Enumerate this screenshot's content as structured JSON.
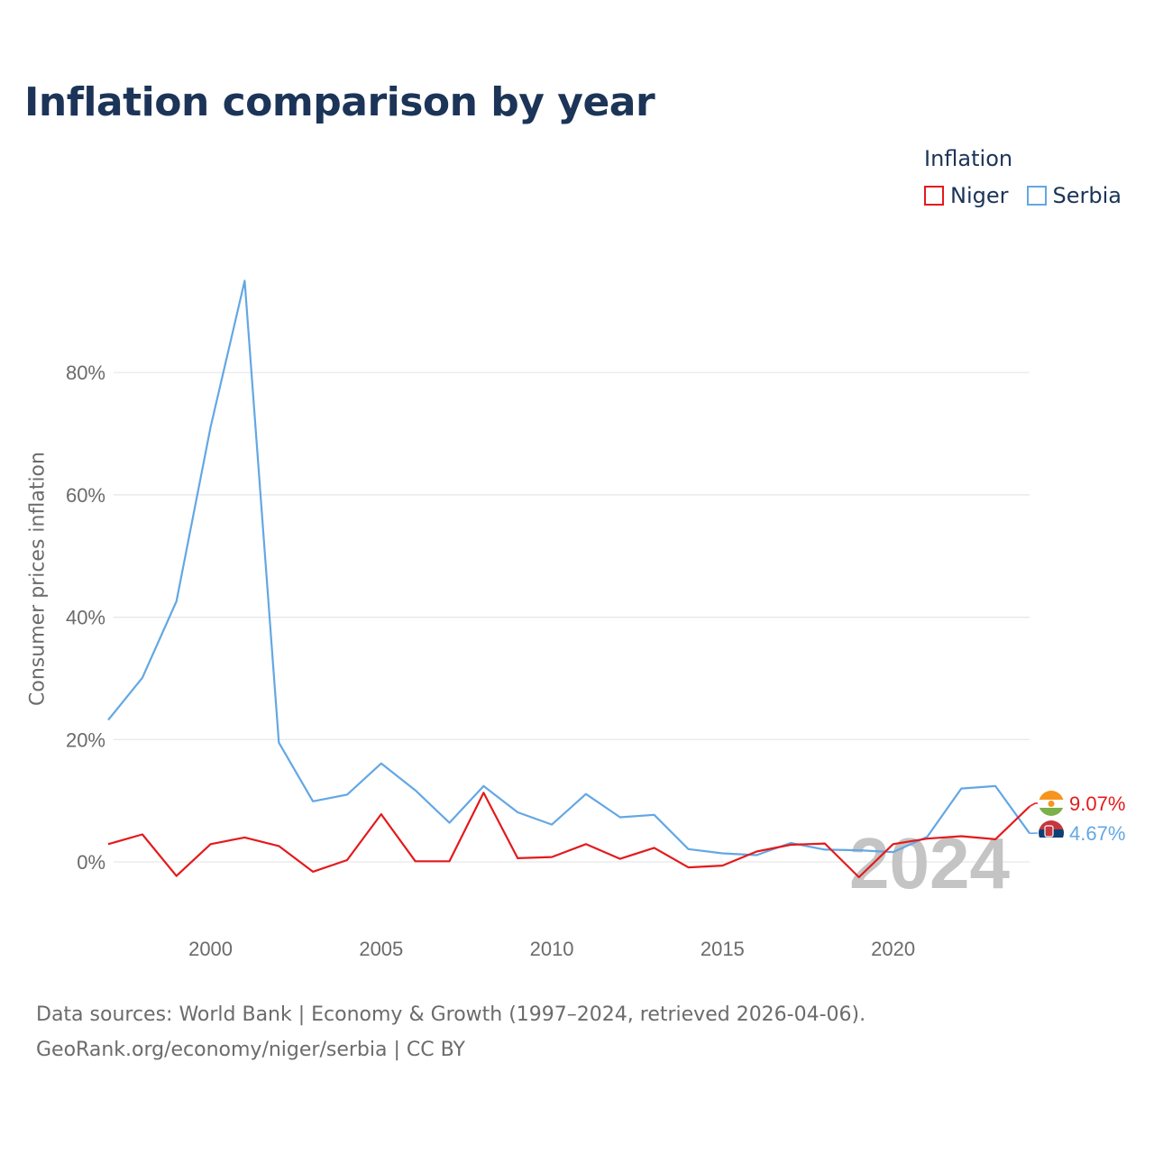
{
  "title": "Inflation comparison by year",
  "legend": {
    "title": "Inflation",
    "items": [
      {
        "label": "Niger",
        "color": "#e31a1c"
      },
      {
        "label": "Serbia",
        "color": "#63a7e4"
      }
    ]
  },
  "year_watermark": "2024",
  "source": {
    "line1": "Data sources: World Bank | Economy & Growth (1997–2024, retrieved 2026-04-06).",
    "line2": "GeoRank.org/economy/niger/serbia | CC BY"
  },
  "chart_data": {
    "type": "line",
    "ylabel": "Consumer prices inflation",
    "xlim": [
      1997,
      2024
    ],
    "ylim": [
      -10,
      96
    ],
    "x_ticks": [
      2000,
      2005,
      2010,
      2015,
      2020
    ],
    "y_ticks": [
      {
        "value": 0,
        "label": "0%"
      },
      {
        "value": 20,
        "label": "20%"
      },
      {
        "value": 40,
        "label": "40%"
      },
      {
        "value": 60,
        "label": "60%"
      },
      {
        "value": 80,
        "label": "80%"
      }
    ],
    "x": [
      1997,
      1998,
      1999,
      2000,
      2001,
      2002,
      2003,
      2004,
      2005,
      2006,
      2007,
      2008,
      2009,
      2010,
      2011,
      2012,
      2013,
      2014,
      2015,
      2016,
      2017,
      2018,
      2019,
      2020,
      2021,
      2022,
      2023,
      2024
    ],
    "series": [
      {
        "name": "Serbia",
        "color": "#63a7e4",
        "end_label": "4.67%",
        "values": [
          23.2,
          30.1,
          42.6,
          71.1,
          95.0,
          19.5,
          9.9,
          11.0,
          16.1,
          11.7,
          6.4,
          12.4,
          8.1,
          6.1,
          11.1,
          7.3,
          7.7,
          2.1,
          1.4,
          1.1,
          3.1,
          2.0,
          1.9,
          1.6,
          4.1,
          12.0,
          12.4,
          4.67
        ]
      },
      {
        "name": "Niger",
        "color": "#e31a1c",
        "end_label": "9.07%",
        "values": [
          2.9,
          4.5,
          -2.3,
          2.9,
          4.0,
          2.6,
          -1.6,
          0.3,
          7.8,
          0.1,
          0.1,
          11.3,
          0.6,
          0.8,
          2.9,
          0.5,
          2.3,
          -0.9,
          -0.6,
          1.7,
          2.8,
          3.0,
          -2.5,
          2.9,
          3.8,
          4.2,
          3.7,
          9.07
        ]
      }
    ]
  }
}
